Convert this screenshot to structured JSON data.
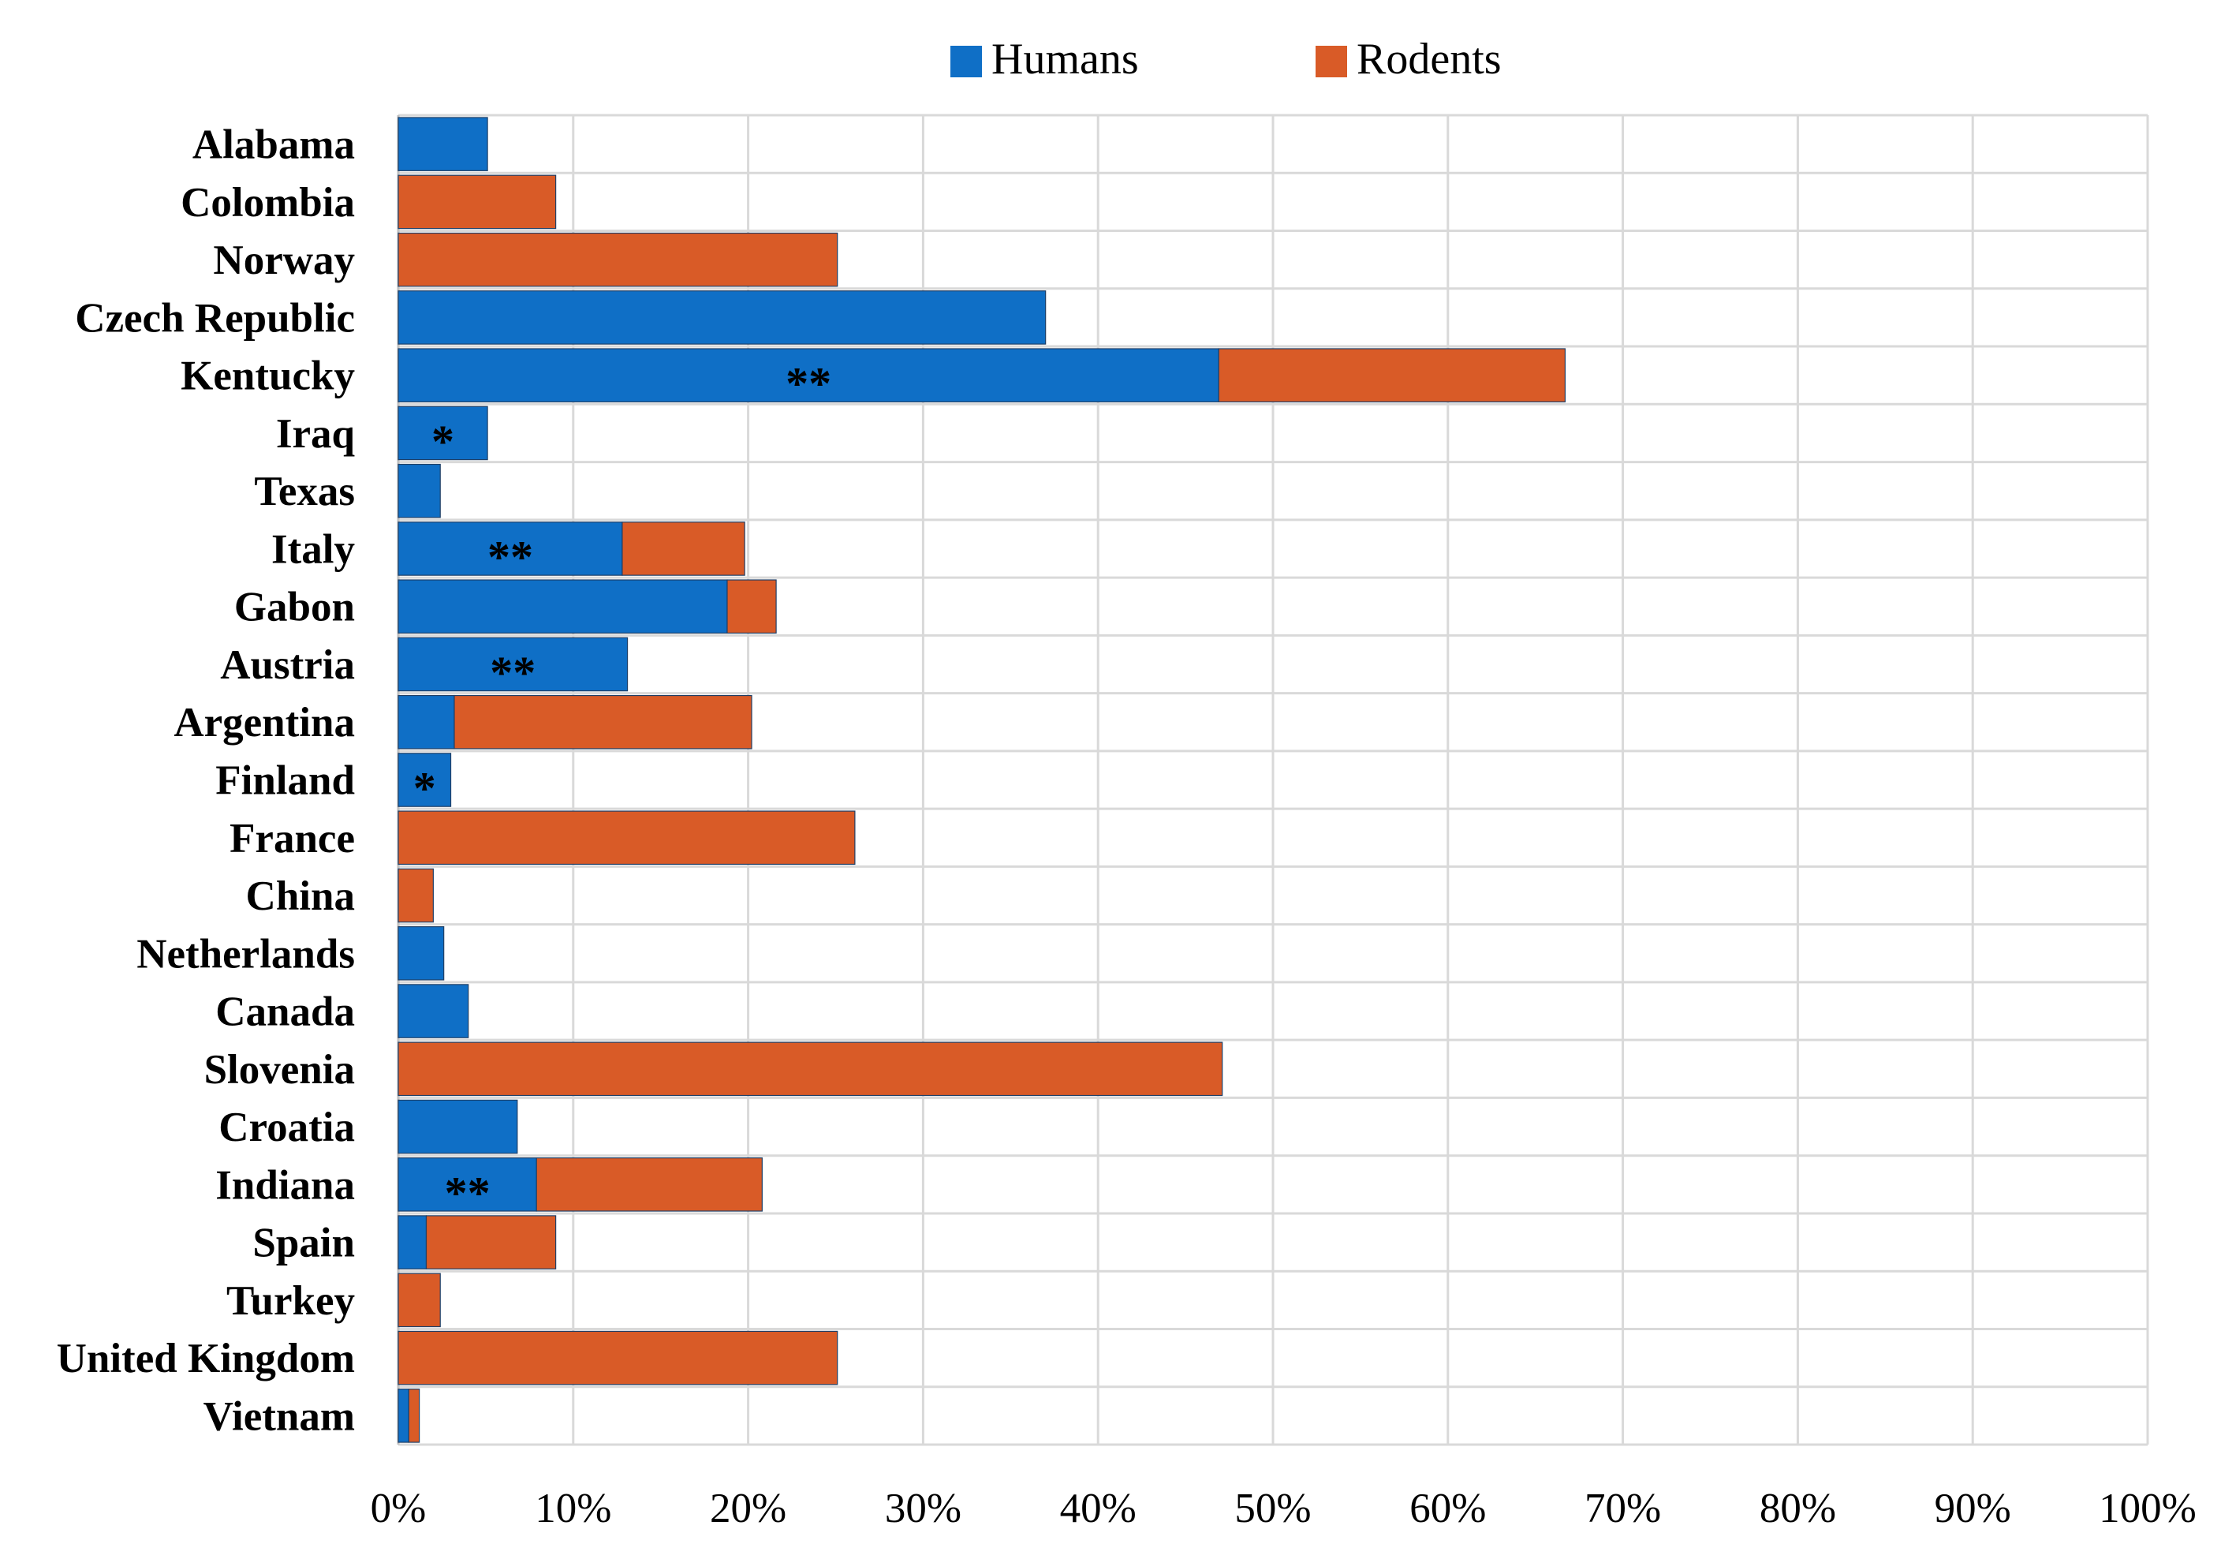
{
  "chart_data": {
    "type": "bar",
    "orientation": "horizontal",
    "stacked": true,
    "categories": [
      "Alabama",
      "Colombia",
      "Norway",
      "Czech Republic",
      "Kentucky",
      "Iraq",
      "Texas",
      "Italy",
      "Gabon",
      "Austria",
      "Argentina",
      "Finland",
      "France",
      "China",
      "Netherlands",
      "Canada",
      "Slovenia",
      "Croatia",
      "Indiana",
      "Spain",
      "Turkey",
      "United Kingdom",
      "Vietnam"
    ],
    "series": [
      {
        "name": "Humans",
        "color": "#0F6FC6",
        "values": [
          5.1,
          0,
          0,
          37,
          46.9,
          5.1,
          2.4,
          12.8,
          18.8,
          13.1,
          3.2,
          3.0,
          0,
          0,
          2.6,
          4.0,
          0,
          6.8,
          7.9,
          1.6,
          0,
          0,
          0.6
        ]
      },
      {
        "name": "Rodents",
        "color": "#D95B27",
        "values": [
          0,
          9.0,
          25.1,
          0,
          19.8,
          0,
          0,
          7.0,
          2.8,
          0,
          17.0,
          0,
          26.1,
          2.0,
          0,
          0,
          47.1,
          0,
          12.9,
          7.4,
          2.4,
          25.1,
          0.6
        ]
      }
    ],
    "annotations": [
      "",
      "",
      "",
      "",
      "**",
      "*",
      "",
      "**",
      "",
      "**",
      "",
      "*",
      "",
      "",
      "",
      "",
      "",
      "",
      "**",
      "",
      "",
      "",
      ""
    ],
    "x_ticks": [
      "0%",
      "10%",
      "20%",
      "30%",
      "40%",
      "50%",
      "60%",
      "70%",
      "80%",
      "90%",
      "100%"
    ],
    "xlim": [
      0,
      100
    ],
    "xlabel": "",
    "ylabel": "",
    "title": "",
    "grid": true,
    "legend_position": "top-center"
  }
}
